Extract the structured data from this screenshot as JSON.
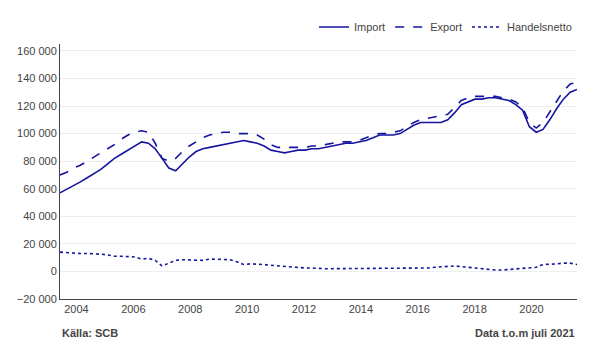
{
  "chart_data": {
    "type": "line",
    "annotations": [
      "Källa: SCB",
      "Data t.o.m juli 2021"
    ],
    "x": [
      2003.42,
      2003.6592,
      2003.8984,
      2004.1376,
      2004.3768,
      2004.6161,
      2004.8553,
      2005.0945,
      2005.3337,
      2005.5729,
      2005.8121,
      2006.0513,
      2006.2905,
      2006.5297,
      2006.7689,
      2007.0082,
      2007.2474,
      2007.4866,
      2007.7258,
      2007.965,
      2008.2042,
      2008.4434,
      2008.6826,
      2008.9218,
      2009.1611,
      2009.4003,
      2009.6395,
      2009.8787,
      2010.1179,
      2010.3571,
      2010.5963,
      2010.8355,
      2011.0747,
      2011.3139,
      2011.5532,
      2011.7924,
      2012.0316,
      2012.2708,
      2012.51,
      2012.7492,
      2012.9884,
      2013.2276,
      2013.4668,
      2013.7061,
      2013.9453,
      2014.1845,
      2014.4237,
      2014.6629,
      2014.9021,
      2015.1413,
      2015.3805,
      2015.6197,
      2015.8589,
      2016.0982,
      2016.3374,
      2016.5766,
      2016.8158,
      2017.055,
      2017.2942,
      2017.5334,
      2017.7726,
      2018.0118,
      2018.2511,
      2018.4903,
      2018.7295,
      2018.9687,
      2019.2079,
      2019.4471,
      2019.6863,
      2019.9255,
      2020.1647,
      2020.4039,
      2020.6432,
      2020.8824,
      2021.1216,
      2021.3608,
      2021.6
    ],
    "series": [
      {
        "name": "Import",
        "color": "#1515a0",
        "line_style": "solid",
        "values": [
          57000,
          59500,
          62000,
          65000,
          68000,
          71000,
          74000,
          78000,
          82000,
          85000,
          88000,
          91000,
          94000,
          93000,
          89000,
          82000,
          75000,
          73000,
          78000,
          83000,
          87000,
          89000,
          90000,
          91000,
          92000,
          93000,
          94000,
          95000,
          94000,
          93000,
          91000,
          88000,
          87000,
          86000,
          87000,
          88000,
          88000,
          89000,
          89000,
          90000,
          91000,
          92000,
          93000,
          93000,
          94000,
          95000,
          97000,
          99000,
          99000,
          99000,
          100000,
          103000,
          106000,
          108000,
          108000,
          108000,
          108000,
          110000,
          115000,
          121000,
          123000,
          125000,
          125000,
          126000,
          126000,
          125000,
          124000,
          121000,
          117000,
          105000,
          101000,
          103000,
          110000,
          118000,
          125000,
          130000,
          132000
        ]
      },
      {
        "name": "Export",
        "color": "#1515a0",
        "line_style": "dashed",
        "values": [
          70000,
          72000,
          75000,
          77000,
          80000,
          83000,
          86000,
          89000,
          92000,
          96000,
          99000,
          101000,
          102000,
          101000,
          93000,
          82000,
          80000,
          82000,
          87000,
          91000,
          94000,
          97000,
          99000,
          100000,
          101000,
          101000,
          100000,
          100000,
          100000,
          99000,
          96000,
          92000,
          90000,
          90000,
          90000,
          90000,
          90000,
          91000,
          91000,
          92000,
          93000,
          94000,
          94000,
          94000,
          95000,
          97000,
          99000,
          100000,
          100000,
          101000,
          102000,
          105000,
          108000,
          110000,
          111000,
          112000,
          113000,
          114000,
          119000,
          124000,
          126000,
          127000,
          127000,
          127000,
          127000,
          126000,
          125000,
          123000,
          119000,
          108000,
          104000,
          108000,
          116000,
          123000,
          131000,
          136000,
          137000
        ]
      },
      {
        "name": "Handelsnetto",
        "color": "#1515a0",
        "line_style": "dotted",
        "values": [
          14000,
          13500,
          13500,
          13000,
          13000,
          13000,
          12500,
          12000,
          11000,
          11000,
          11000,
          10500,
          9000,
          9500,
          8000,
          4000,
          6000,
          8000,
          8500,
          8500,
          8000,
          8000,
          9000,
          9000,
          9000,
          8500,
          7000,
          5000,
          5500,
          5500,
          5000,
          4500,
          4000,
          4000,
          3500,
          3000,
          2500,
          2500,
          2000,
          2000,
          2000,
          2000,
          2000,
          2000,
          2000,
          2000,
          2000,
          2000,
          2000,
          2000,
          2000,
          2000,
          2000,
          2000,
          2500,
          3000,
          3500,
          4000,
          4000,
          3500,
          3000,
          2000,
          2000,
          1500,
          1000,
          1000,
          1500,
          2000,
          2000,
          3000,
          3000,
          5000,
          5000,
          5500,
          6000,
          6000,
          5000
        ]
      }
    ],
    "xlim": [
      2003.42,
      2021.6
    ],
    "xticks": [
      2004,
      2006,
      2008,
      2010,
      2012,
      2014,
      2016,
      2018,
      2020
    ],
    "ylim": [
      -20000,
      165000
    ],
    "yticks": [
      {
        "value": -20000,
        "label": "−20 000"
      },
      0,
      {
        "value": 20000,
        "label": "20 000"
      },
      {
        "value": 40000,
        "label": "40 000"
      },
      {
        "value": 60000,
        "label": "60 000"
      },
      {
        "value": 80000,
        "label": "80 000"
      },
      {
        "value": 100000,
        "label": "100 000"
      },
      {
        "value": 120000,
        "label": "120 000"
      },
      {
        "value": 140000,
        "label": "140 000"
      },
      {
        "value": 160000,
        "label": "160 000"
      }
    ],
    "grid": "y",
    "legend": "upper right"
  }
}
